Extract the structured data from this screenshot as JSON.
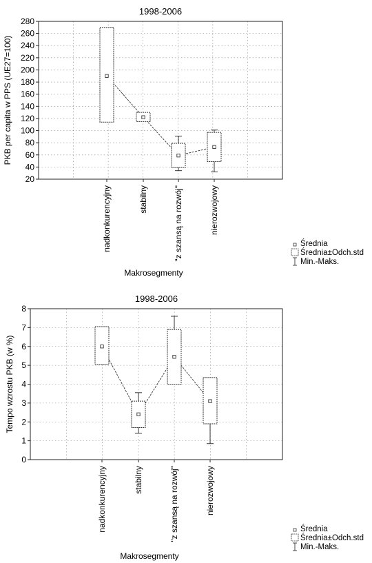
{
  "legend_items": [
    {
      "id": "mean",
      "label": "Średnia"
    },
    {
      "id": "box",
      "label": "Średnia±Odch.std"
    },
    {
      "id": "whisker",
      "label": "Min.-Maks."
    }
  ],
  "chart_data": [
    {
      "type": "box",
      "title": "1998-2006",
      "xlabel": "Makrosegmenty",
      "ylabel": "PKB per capita w PPS (UE27=100)",
      "ylim": [
        20,
        280
      ],
      "yticks": [
        "20",
        "40",
        "60",
        "80",
        "100",
        "120",
        "140",
        "160",
        "180",
        "200",
        "220",
        "240",
        "260",
        "280"
      ],
      "categories": [
        "nadkonkurencyjny",
        "stabilny",
        "\"z szansą na rozwój\"",
        "nierozwojowy"
      ],
      "mean": [
        190,
        122,
        59,
        73
      ],
      "box_low": [
        114,
        115,
        39,
        49
      ],
      "box_high": [
        270,
        130,
        79,
        97
      ],
      "min": [
        null,
        null,
        34,
        32
      ],
      "max": [
        null,
        null,
        91,
        101
      ],
      "grid": true,
      "legend_position": "bottom-right"
    },
    {
      "type": "box",
      "title": "1998-2006",
      "xlabel": "Makrosegmenty",
      "ylabel": "Tempo wzrostu PKB (w %)",
      "ylim": [
        0,
        8
      ],
      "yticks": [
        "0",
        "1",
        "2",
        "3",
        "4",
        "5",
        "6",
        "7",
        "8"
      ],
      "categories": [
        "nadkonkurencyjny",
        "stabilny",
        "\"z szansą na rozwój\"",
        "nierozwojowy"
      ],
      "mean": [
        6.0,
        2.4,
        5.45,
        3.1
      ],
      "box_low": [
        5.05,
        1.7,
        4.0,
        1.9
      ],
      "box_high": [
        7.05,
        3.1,
        6.9,
        4.35
      ],
      "min": [
        null,
        1.4,
        null,
        0.85
      ],
      "max": [
        null,
        3.55,
        7.6,
        null
      ],
      "grid": true,
      "legend_position": "bottom-right"
    }
  ]
}
